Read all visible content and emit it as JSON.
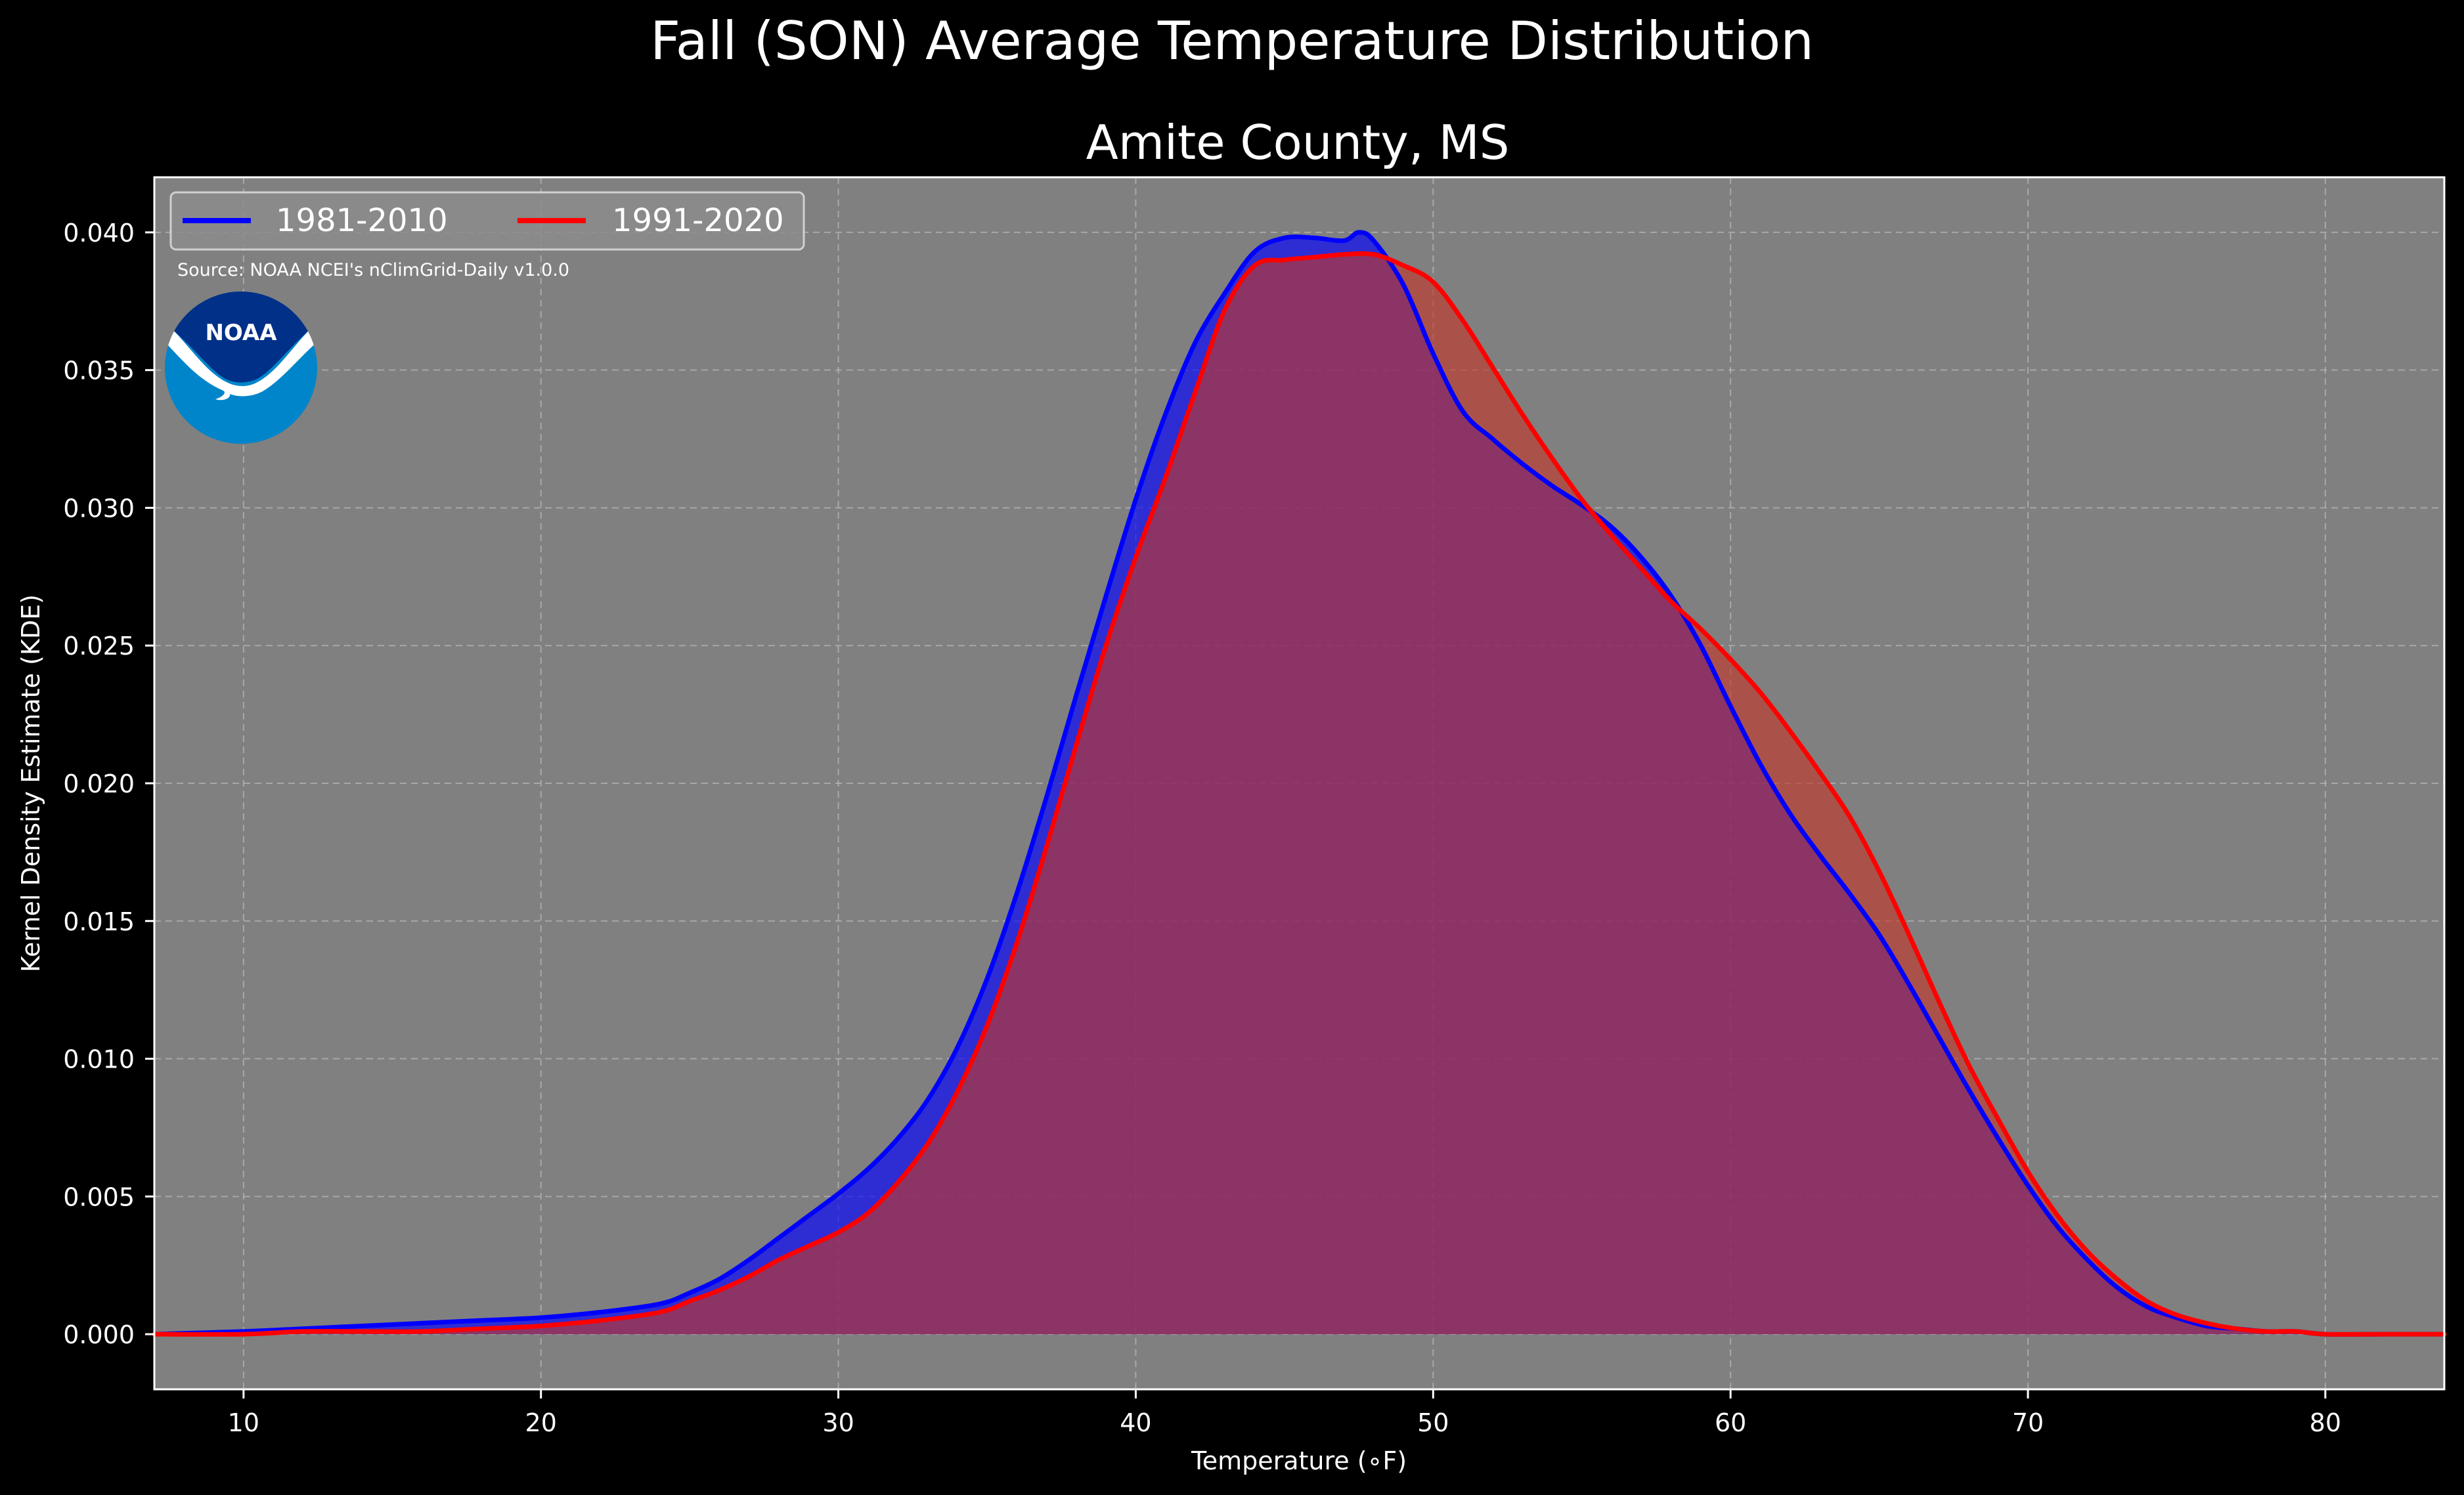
{
  "chart_data": {
    "type": "area",
    "title": "Fall (SON) Average Temperature Distribution",
    "subtitle": "Amite County, MS",
    "xlabel": "Temperature (∘F)",
    "ylabel": "Kernel Density Estimate (KDE)",
    "xlim": [
      7,
      84
    ],
    "ylim": [
      -0.002,
      0.042
    ],
    "xticks": [
      10,
      20,
      30,
      40,
      50,
      60,
      70,
      80
    ],
    "xtick_labels": [
      "10",
      "20",
      "30",
      "40",
      "50",
      "60",
      "70",
      "80"
    ],
    "yticks": [
      0,
      0.005,
      0.01,
      0.015,
      0.02,
      0.025,
      0.03,
      0.035,
      0.04
    ],
    "ytick_labels": [
      "0.000",
      "0.005",
      "0.010",
      "0.015",
      "0.020",
      "0.025",
      "0.030",
      "0.035",
      "0.040"
    ],
    "grid": true,
    "background": "#808080",
    "legend_position": "top-left",
    "series": [
      {
        "name": "1981-2010",
        "color": "#0000ff",
        "fill_color": "#0000ff",
        "x": [
          7,
          10,
          12,
          14,
          16,
          18,
          20,
          22,
          24,
          25,
          26,
          27,
          28,
          29,
          30,
          31,
          32,
          33,
          34,
          35,
          36,
          37,
          38,
          39,
          40,
          41,
          42,
          43,
          44,
          45,
          46,
          47,
          47.5,
          48,
          49,
          50,
          51,
          52,
          53,
          54,
          55,
          56,
          57,
          58,
          59,
          60,
          61,
          62,
          63,
          64,
          65,
          66,
          67,
          68,
          69,
          70,
          71,
          72,
          73,
          74,
          75,
          76,
          77,
          78,
          79,
          80,
          82,
          84
        ],
        "y": [
          0.0,
          0.0001,
          0.0002,
          0.0003,
          0.0004,
          0.0005,
          0.0006,
          0.0008,
          0.0011,
          0.0015,
          0.002,
          0.0027,
          0.0035,
          0.0043,
          0.0051,
          0.006,
          0.0071,
          0.0085,
          0.0104,
          0.0129,
          0.016,
          0.0195,
          0.0232,
          0.0268,
          0.0303,
          0.0334,
          0.036,
          0.0378,
          0.0393,
          0.0398,
          0.0398,
          0.0397,
          0.04,
          0.0397,
          0.0381,
          0.0356,
          0.0335,
          0.0325,
          0.0316,
          0.0308,
          0.0301,
          0.0293,
          0.0282,
          0.0268,
          0.025,
          0.0228,
          0.0207,
          0.0189,
          0.0174,
          0.016,
          0.0145,
          0.0127,
          0.0108,
          0.0089,
          0.0071,
          0.0054,
          0.0039,
          0.0027,
          0.0017,
          0.001,
          0.0006,
          0.0003,
          0.0002,
          0.0001,
          0.0001,
          0.0,
          0.0,
          0.0
        ]
      },
      {
        "name": "1991-2020",
        "color": "#ff0000",
        "fill_color": "#c0392b",
        "x": [
          7,
          10,
          12,
          14,
          16,
          18,
          20,
          22,
          24,
          25,
          26,
          27,
          28,
          29,
          30,
          31,
          32,
          33,
          34,
          35,
          36,
          37,
          38,
          39,
          40,
          41,
          42,
          43,
          44,
          45,
          46,
          47,
          48,
          49,
          50,
          51,
          52,
          53,
          54,
          55,
          56,
          57,
          58,
          59,
          60,
          61,
          62,
          63,
          64,
          65,
          66,
          67,
          68,
          69,
          70,
          71,
          72,
          73,
          74,
          75,
          76,
          77,
          78,
          79,
          80,
          82,
          84
        ],
        "y": [
          0.0,
          0.0,
          0.0001,
          0.0001,
          0.0001,
          0.0002,
          0.0003,
          0.0005,
          0.0008,
          0.0012,
          0.0016,
          0.0021,
          0.0027,
          0.0032,
          0.0037,
          0.0044,
          0.0055,
          0.0069,
          0.0088,
          0.0112,
          0.0142,
          0.0177,
          0.0214,
          0.025,
          0.0282,
          0.0311,
          0.0342,
          0.0372,
          0.0388,
          0.039,
          0.0391,
          0.0392,
          0.0392,
          0.0388,
          0.0382,
          0.0368,
          0.0351,
          0.0334,
          0.0318,
          0.0303,
          0.029,
          0.0278,
          0.0266,
          0.0256,
          0.0245,
          0.0233,
          0.0219,
          0.0204,
          0.0188,
          0.0168,
          0.0145,
          0.0121,
          0.0098,
          0.0078,
          0.0059,
          0.0043,
          0.003,
          0.002,
          0.0012,
          0.0007,
          0.0004,
          0.0002,
          0.0001,
          0.0001,
          0.0,
          0.0,
          0.0
        ]
      }
    ],
    "annotation": "Source: NOAA NCEI's nClimGrid-Daily v1.0.0",
    "logo": {
      "text": "NOAA",
      "circle_color": "#0085ca",
      "top_color": "#003087",
      "bird_color": "#ffffff"
    }
  }
}
